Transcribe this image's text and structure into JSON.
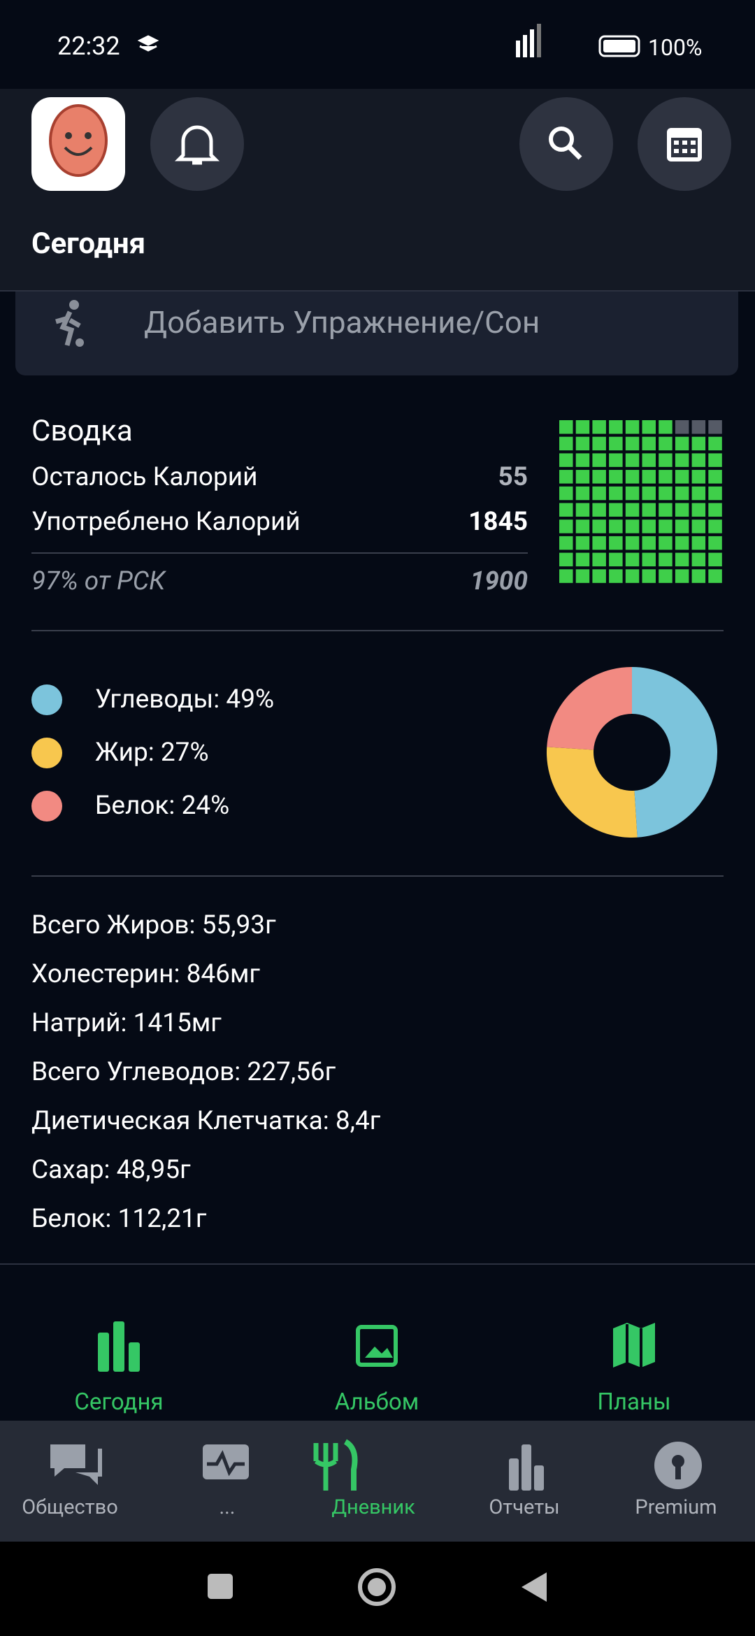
{
  "status_bar": {
    "time": "22:32",
    "battery": "100%"
  },
  "header": {
    "title": "Сегодня"
  },
  "add_exercise": {
    "label": "Добавить Упражнение/Сон"
  },
  "summary": {
    "title": "Сводка",
    "remaining": {
      "label": "Осталось Калорий",
      "value": 55
    },
    "consumed": {
      "label": "Употреблено Калорий",
      "value": 1845
    },
    "goal": {
      "label": "97% от РСК",
      "value": 1900
    }
  },
  "macros": [
    {
      "label": "Углеводы: 49%",
      "value": 49,
      "color": "#7cc4dc"
    },
    {
      "label": "Жир: 27%",
      "value": 27,
      "color": "#f8c74e"
    },
    {
      "label": "Белок: 24%",
      "value": 24,
      "color": "#f28a82"
    }
  ],
  "nutrients": [
    "Всего Жиров: 55,93г",
    "Холестерин: 846мг",
    "Натрий: 1415мг",
    "Всего Углеводов: 227,56г",
    "Диетическая Клетчатка: 8,4г",
    "Сахар: 48,95г",
    "Белок: 112,21г"
  ],
  "tabs": [
    {
      "label": "Сегодня"
    },
    {
      "label": "Альбом"
    },
    {
      "label": "Планы"
    }
  ],
  "nav": [
    {
      "label": "Общество"
    },
    {
      "label": "..."
    },
    {
      "label": "Дневник"
    },
    {
      "label": "Отчеты"
    },
    {
      "label": "Premium"
    }
  ]
}
